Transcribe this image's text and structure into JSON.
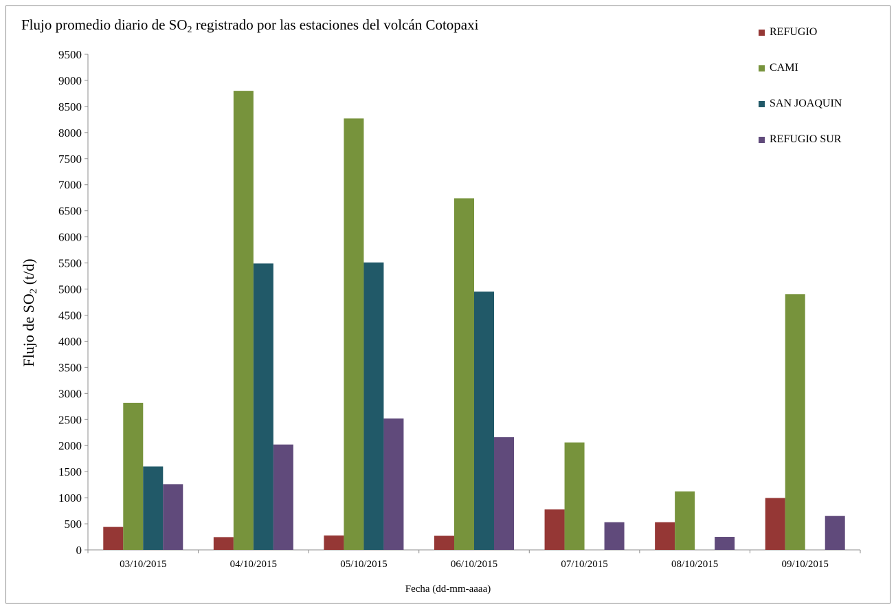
{
  "chart_data": {
    "type": "bar",
    "title_main": "Flujo promedio diario de SO",
    "title_sub": "2",
    "title_rest": " registrado por las estaciones del volcán Cotopaxi",
    "ylabel_main": "Flujo de SO",
    "ylabel_sub": "2",
    "ylabel_rest": " (t/d)",
    "xlabel": "Fecha (dd-mm-aaaa)",
    "ylim": [
      0,
      9500
    ],
    "ytick_step": 500,
    "grid": false,
    "legend_position": "top-right",
    "categories": [
      "03/10/2015",
      "04/10/2015",
      "05/10/2015",
      "06/10/2015",
      "07/10/2015",
      "08/10/2015",
      "09/10/2015"
    ],
    "series": [
      {
        "name": "REFUGIO",
        "color": "#953735",
        "values": [
          440,
          245,
          275,
          270,
          775,
          530,
          995
        ]
      },
      {
        "name": "CAMI",
        "color": "#77933c",
        "values": [
          2820,
          8800,
          8270,
          6740,
          2060,
          1120,
          4900
        ]
      },
      {
        "name": "SAN JOAQUIN",
        "color": "#215968",
        "values": [
          1600,
          5490,
          5510,
          4950,
          null,
          null,
          null
        ]
      },
      {
        "name": "REFUGIO SUR",
        "color": "#604a7b",
        "values": [
          1260,
          2020,
          2520,
          2160,
          530,
          250,
          650
        ]
      }
    ]
  }
}
